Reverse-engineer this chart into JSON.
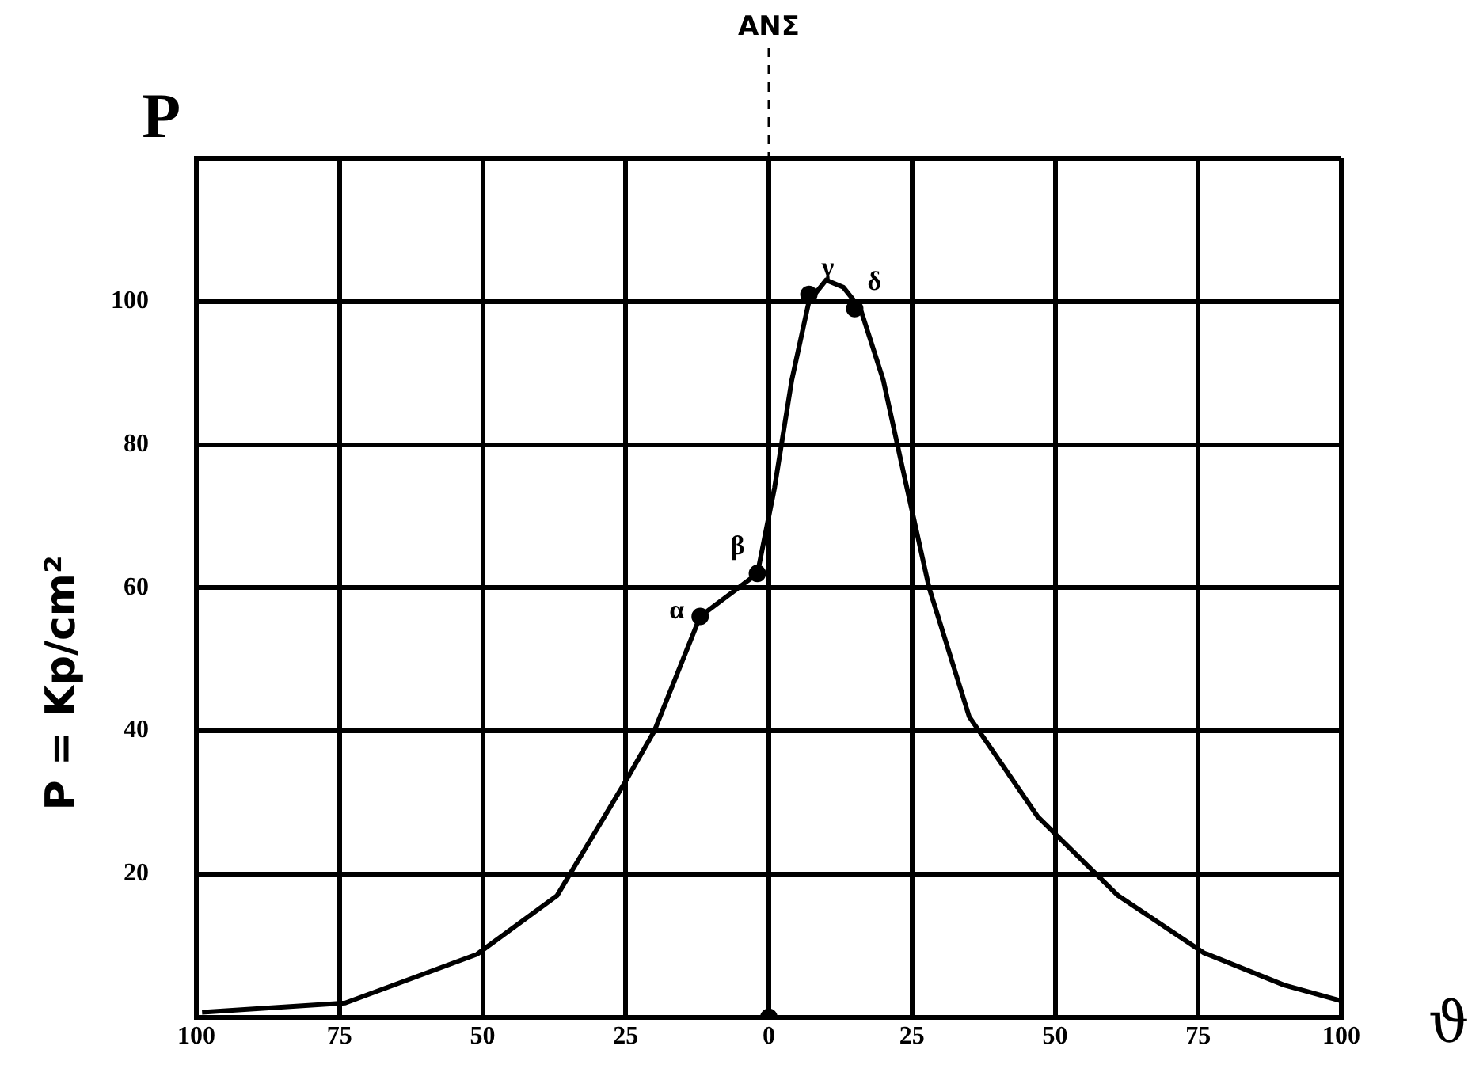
{
  "chart_data": {
    "type": "line",
    "xlabel": "ϑ",
    "ylabel": "P = Kp/cm²",
    "xlim": [
      -100,
      100
    ],
    "ylim": [
      0,
      120
    ],
    "xticks": [
      {
        "value": -100,
        "label": "100"
      },
      {
        "value": -75,
        "label": "75"
      },
      {
        "value": -50,
        "label": "50"
      },
      {
        "value": -25,
        "label": "25"
      },
      0,
      25,
      50,
      75,
      100
    ],
    "yticks": [
      {
        "value": 0,
        "label": null
      },
      20,
      40,
      60,
      80,
      100,
      {
        "value": 120,
        "label": null
      }
    ],
    "grid": true,
    "legend": false,
    "series": [
      {
        "color": "#000000",
        "marker": "none",
        "x": [
          -99,
          -74,
          -51,
          -37,
          -25,
          -20,
          -12,
          -2,
          1,
          4,
          7,
          10,
          13,
          16,
          20,
          23,
          28,
          35,
          47,
          61,
          76,
          90,
          100
        ],
        "values": [
          0.7,
          2,
          8.8,
          17,
          33,
          40,
          56,
          62,
          74,
          89,
          100,
          103,
          102,
          99,
          89,
          78,
          60,
          42,
          28,
          17,
          9,
          4.5,
          2.3
        ]
      },
      {
        "type": "scatter",
        "color": "#000000",
        "marker": "circle",
        "x": [
          -12,
          -2,
          7,
          15,
          0
        ],
        "values": [
          56,
          62,
          101,
          99,
          0
        ]
      }
    ],
    "ref_lines": [
      {
        "axis": "x",
        "value": 0,
        "label": "ΑΝΣ",
        "color": "#000000",
        "line_style": "dashed"
      }
    ],
    "annotations": [
      "P",
      {
        "text": "α",
        "x": -12,
        "y": 56
      },
      {
        "text": "β",
        "x": -2,
        "y": 62
      },
      {
        "text": "γ",
        "x": 7,
        "y": 101
      },
      {
        "text": "δ",
        "x": 15,
        "y": 99
      }
    ]
  }
}
